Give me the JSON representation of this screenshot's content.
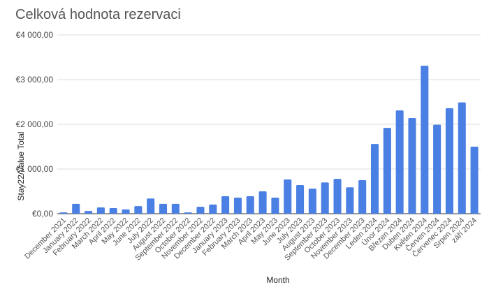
{
  "chart_data": {
    "type": "bar",
    "title": "Celková hodnota rezervaci",
    "xlabel": "Month",
    "ylabel": "Stay22/Value Total",
    "ylim": [
      0,
      4000
    ],
    "yticks": [
      0,
      1000,
      2000,
      3000,
      4000
    ],
    "ytick_labels": [
      "€0,00",
      "€1 000,00",
      "€2 000,00",
      "€3 000,00",
      "€4 000,00"
    ],
    "grid": true,
    "bar_color": "#4a7fe3",
    "categories": [
      "December 2021",
      "January 2022",
      "February 2022",
      "March 2022",
      "April 2022",
      "May 2022",
      "June 2022",
      "July 2022",
      "August 2022",
      "September 2022",
      "October 2022",
      "November 2022",
      "December 2022",
      "January 2023",
      "February 2023",
      "March 2023",
      "April 2023",
      "May 2023",
      "June 2023",
      "July 2023",
      "August 2023",
      "September 2023",
      "October 2023",
      "November 2023",
      "December 2023",
      "Leden 2024",
      "Únor 2024",
      "Březen 2024",
      "Duben 2024",
      "Květen 2024",
      "Červen 2024",
      "Červenec 2024",
      "Srpen 2024",
      "září 2024"
    ],
    "values": [
      30,
      220,
      60,
      140,
      125,
      95,
      170,
      340,
      220,
      220,
      30,
      155,
      205,
      390,
      360,
      390,
      500,
      360,
      765,
      640,
      560,
      700,
      780,
      590,
      750,
      1560,
      1920,
      2310,
      2140,
      3310,
      1990,
      2360,
      2490,
      1500
    ]
  }
}
